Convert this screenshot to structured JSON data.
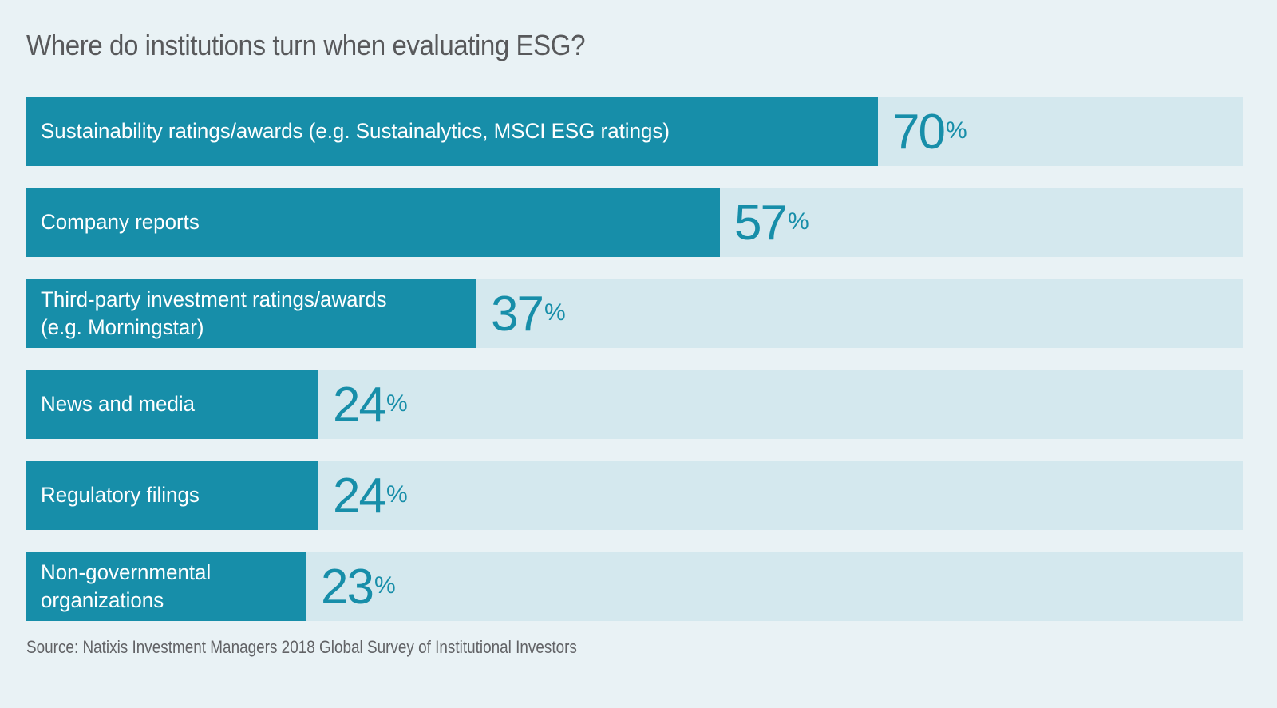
{
  "chart_data": {
    "type": "bar",
    "orientation": "horizontal",
    "title": "Where do institutions turn when evaluating ESG?",
    "categories": [
      "Sustainability ratings/awards (e.g. Sustainalytics, MSCI ESG ratings)",
      "Company reports",
      "Third-party investment ratings/awards\n(e.g. Morningstar)",
      "News and media",
      "Regulatory filings",
      "Non-governmental\norganizations"
    ],
    "values": [
      70,
      57,
      37,
      24,
      24,
      23
    ],
    "unit": "%",
    "xlim": [
      0,
      100
    ],
    "xlabel": "",
    "ylabel": "",
    "grid": false,
    "legend": "none",
    "source": "Source: Natixis Investment Managers 2018 Global Survey of Institutional Investors",
    "colors": {
      "fill": "#178ea9",
      "track": "#d4e8ee",
      "background": "#e9f2f5",
      "title": "#58595b"
    }
  }
}
